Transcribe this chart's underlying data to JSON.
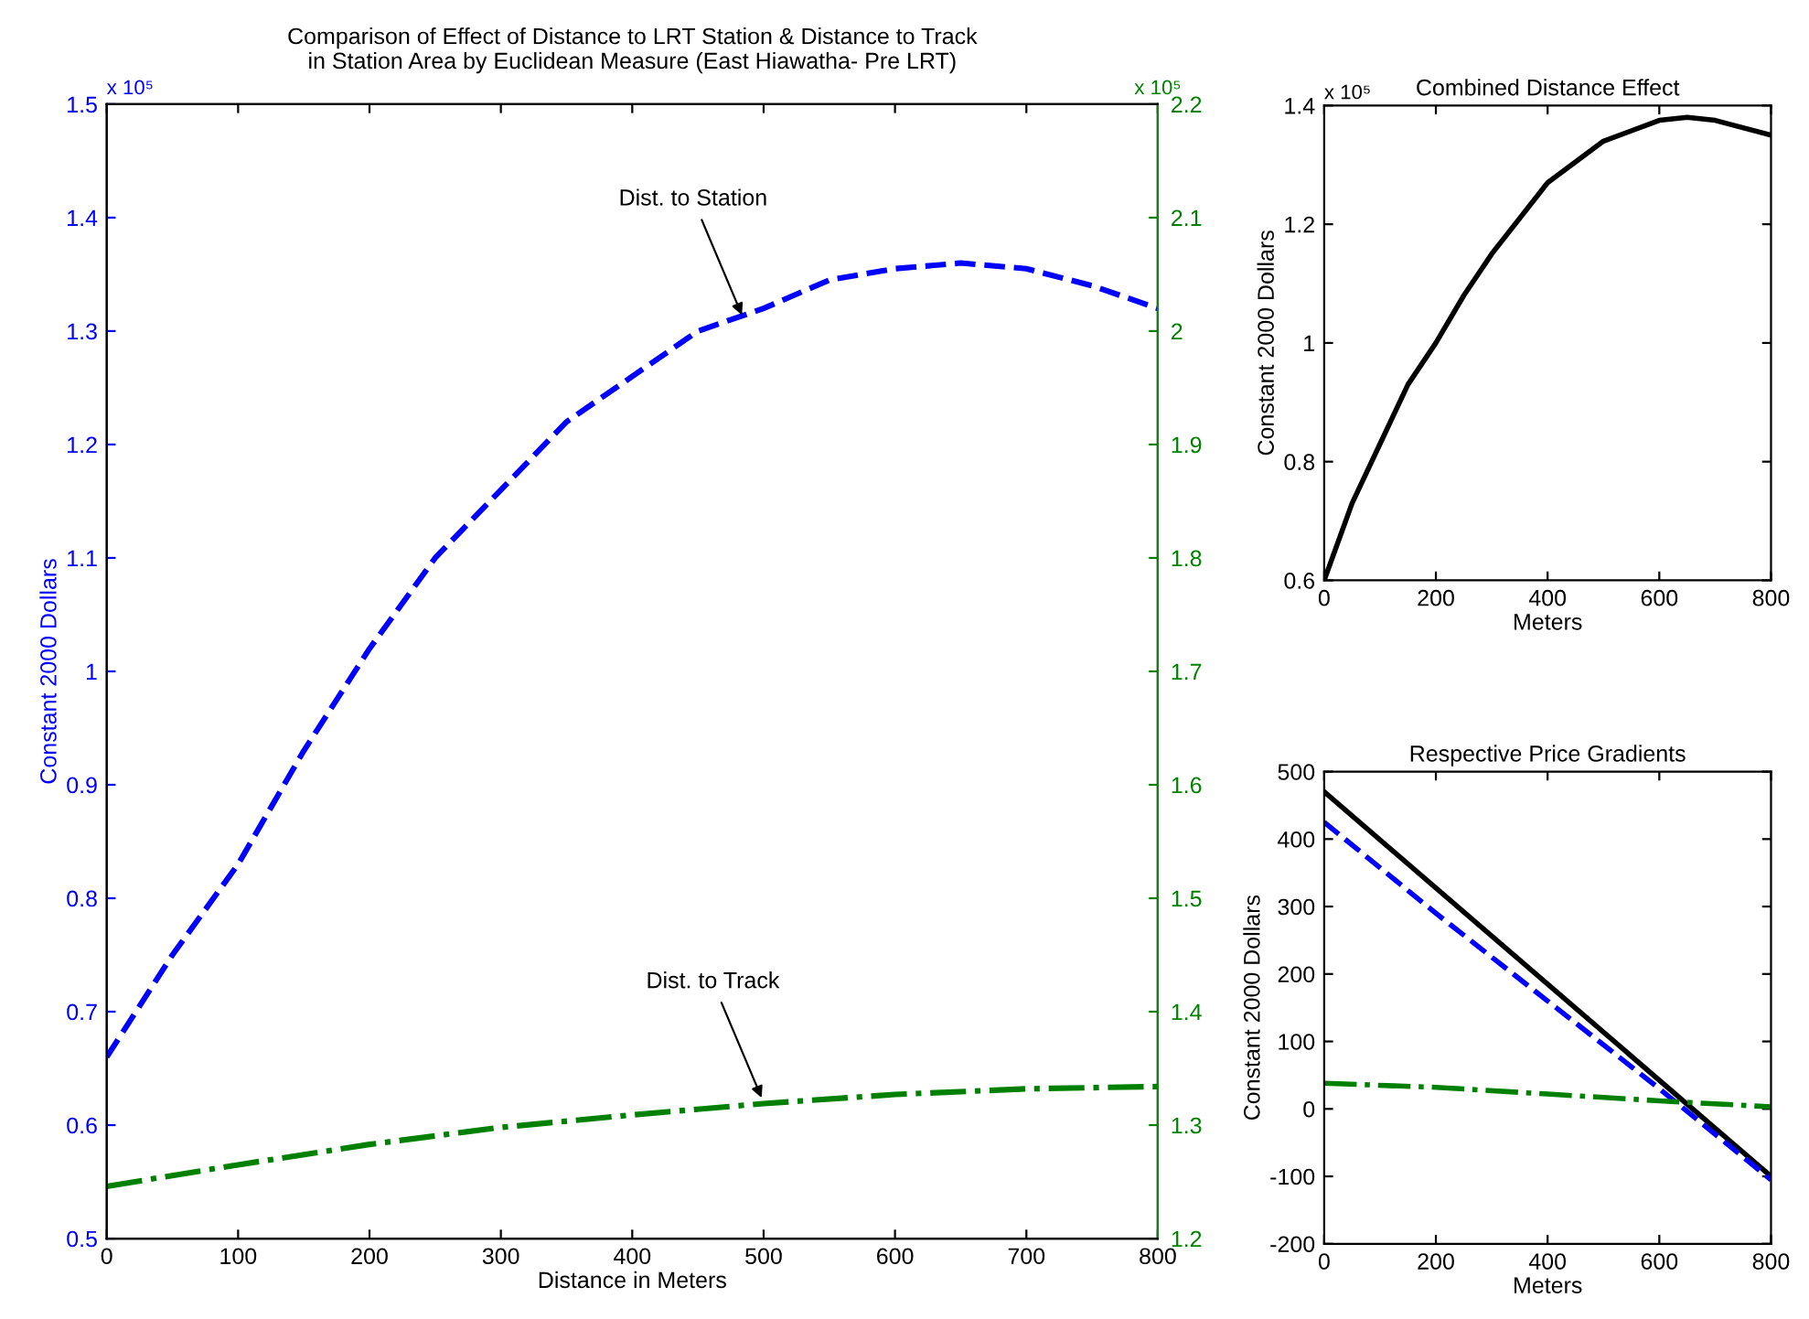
{
  "chart_data": [
    {
      "type": "line",
      "title": "Comparison of Effect of Distance to LRT Station & Distance to Track\nin Station Area by Euclidean Measure (East Hiawatha- Pre LRT)",
      "xlabel": "Distance in Meters",
      "ylabel": "Constant 2000 Dollars",
      "xlim": [
        0,
        800
      ],
      "xticks": [
        0,
        100,
        200,
        300,
        400,
        500,
        600,
        700,
        800
      ],
      "ylim": [
        0.5,
        1.5
      ],
      "yticks": [
        0.5,
        0.6,
        0.7,
        0.8,
        0.9,
        1,
        1.1,
        1.2,
        1.3,
        1.4,
        1.5
      ],
      "y2lim": [
        1.2,
        2.2
      ],
      "y2ticks": [
        1.2,
        1.3,
        1.4,
        1.5,
        1.6,
        1.7,
        1.8,
        1.9,
        2,
        2.1,
        2.2
      ],
      "grid": false,
      "legend": false,
      "annotations": [
        "x 10⁵",
        "x 10⁵",
        {
          "text": "Dist. to Station",
          "x": 485,
          "y": 1.31
        },
        {
          "text": "Dist. to Track",
          "x": 500,
          "y": 0.62
        }
      ],
      "series": [
        {
          "color": "#0000ff",
          "line_style": "dashed",
          "x": [
            0,
            50,
            100,
            150,
            200,
            250,
            300,
            350,
            400,
            450,
            500,
            550,
            600,
            650,
            700,
            750,
            800
          ],
          "values": [
            0.66,
            0.75,
            0.83,
            0.93,
            1.02,
            1.1,
            1.16,
            1.22,
            1.26,
            1.3,
            1.32,
            1.345,
            1.355,
            1.36,
            1.355,
            1.34,
            1.32
          ]
        },
        {
          "color": "#008000",
          "line_style": "dashdot",
          "axis": "y2",
          "x": [
            0,
            100,
            200,
            300,
            400,
            500,
            600,
            700,
            800
          ],
          "values": [
            1.246,
            1.265,
            1.283,
            1.298,
            1.309,
            1.319,
            1.327,
            1.332,
            1.334
          ]
        }
      ]
    },
    {
      "type": "line",
      "title": "Combined Distance Effect",
      "xlabel": "Meters",
      "ylabel": "Constant 2000 Dollars",
      "xlim": [
        0,
        800
      ],
      "xticks": [
        0,
        200,
        400,
        600,
        800
      ],
      "ylim": [
        0.6,
        1.4
      ],
      "yticks": [
        0.6,
        0.8,
        1,
        1.2,
        1.4
      ],
      "grid": false,
      "legend": false,
      "annotations": [
        "x 10⁵"
      ],
      "series": [
        {
          "color": "#000000",
          "line_style": "solid",
          "x": [
            0,
            50,
            100,
            150,
            200,
            250,
            300,
            400,
            500,
            600,
            650,
            700,
            800
          ],
          "values": [
            0.6,
            0.73,
            0.83,
            0.93,
            1.0,
            1.08,
            1.15,
            1.27,
            1.34,
            1.375,
            1.38,
            1.375,
            1.35
          ]
        }
      ]
    },
    {
      "type": "line",
      "title": "Respective Price Gradients",
      "xlabel": "Meters",
      "ylabel": "Constant 2000 Dollars",
      "xlim": [
        0,
        800
      ],
      "xticks": [
        0,
        200,
        400,
        600,
        800
      ],
      "ylim": [
        -200,
        500
      ],
      "yticks": [
        -200,
        -100,
        0,
        100,
        200,
        300,
        400,
        500
      ],
      "grid": false,
      "legend": false,
      "series": [
        {
          "color": "#000000",
          "line_style": "solid",
          "x": [
            0,
            800
          ],
          "values": [
            470,
            -100
          ]
        },
        {
          "color": "#0000ff",
          "line_style": "dashed",
          "x": [
            0,
            200,
            400,
            600,
            800
          ],
          "values": [
            425,
            290,
            160,
            30,
            -105
          ]
        },
        {
          "color": "#008000",
          "line_style": "dashdot",
          "x": [
            0,
            200,
            400,
            600,
            800
          ],
          "values": [
            38,
            32,
            22,
            12,
            3
          ]
        }
      ]
    }
  ]
}
